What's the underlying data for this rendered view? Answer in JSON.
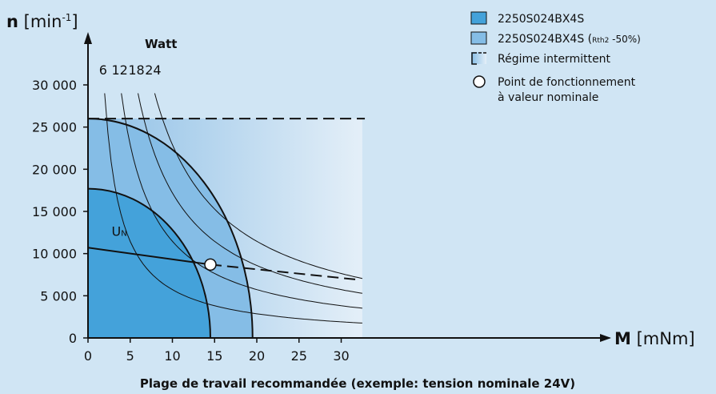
{
  "chart_data": {
    "type": "line",
    "title": "Plage de travail recommandée (exemple: tension nominale 24V)",
    "xlabel_bold": "M",
    "xlabel_unit": "[mNm]",
    "ylabel_bold": "n",
    "ylabel_unit": "[min",
    "ylabel_exp": "-1",
    "ylabel_close": "]",
    "xlim": [
      0,
      32.5
    ],
    "ylim": [
      0,
      31000
    ],
    "xticks": [
      0,
      5,
      10,
      15,
      20,
      25,
      30
    ],
    "xtick_labels": [
      "0",
      "5",
      "10",
      "15",
      "20",
      "25",
      "30"
    ],
    "yticks": [
      0,
      5000,
      10000,
      15000,
      20000,
      25000,
      30000
    ],
    "ytick_labels": [
      "0",
      "5 000",
      "10 000",
      "15 000",
      "20 000",
      "25 000",
      "30 000"
    ],
    "power_title": "Watt",
    "power_curves": [
      {
        "label": "6",
        "watts": 6
      },
      {
        "label": "12",
        "watts": 12
      },
      {
        "label": "18",
        "watts": 18
      },
      {
        "label": "24",
        "watts": 24
      }
    ],
    "continuous_region": {
      "max_torque": 14.5,
      "max_speed": 17700
    },
    "continuous_region_rth": {
      "max_torque": 19.5,
      "max_speed": 26000
    },
    "intermittent_region": {
      "max_torque": 32.5,
      "max_speed": 26000
    },
    "un_label": "U",
    "un_sub": "N",
    "un_line": [
      [
        0,
        10700
      ],
      [
        14.5,
        8700
      ],
      [
        33,
        6900
      ]
    ],
    "operating_point": {
      "x": 14.5,
      "y": 8700
    },
    "legend": {
      "item1": "2250S024BX4S",
      "item2_main": "2250S024BX4S (",
      "item2_sub": "Rth2",
      "item2_tail": " -50%)",
      "item3": "Régime intermittent",
      "item4_line1": "Point de fonctionnement",
      "item4_line2": "à valeur nominale"
    },
    "colors": {
      "background": "#d0e5f4",
      "continuous": "#44a2da",
      "continuous_rth": "#85bde6",
      "intermittent_start": "#8fc0e6",
      "intermittent_end": "#e4eff8"
    }
  }
}
